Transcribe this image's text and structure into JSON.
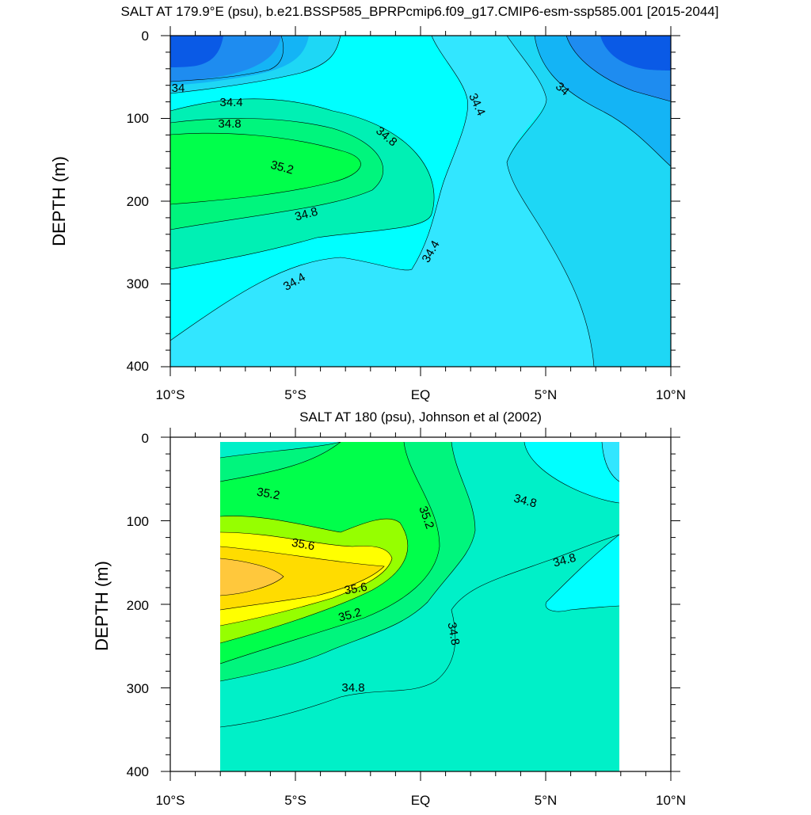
{
  "chart_data": [
    {
      "type": "contour",
      "title": "SALT AT 179.9°E (psu), b.e21.BSSP585_BPRPcmip6.f09_g17.CMIP6-esm-ssp585.001 [2015-2044]",
      "ylabel": "DEPTH (m)",
      "x_ticks": [
        "10°S",
        "5°S",
        "EQ",
        "5°N",
        "10°N"
      ],
      "y_ticks": [
        "0",
        "100",
        "200",
        "300",
        "400"
      ],
      "xlim": [
        -10,
        10
      ],
      "ylim": [
        400,
        0
      ],
      "colors": {
        "lt33.8": "#0a5ae6",
        "33.8-34.0": "#1e8cf0",
        "34.0-34.2": "#14b4f5",
        "34.2-34.4": "#1ed7f5",
        "34.4-34.6": "#32e6ff",
        "34.6-34.8": "#00ffff",
        "34.8-35.0": "#00f0b4",
        "35.0-35.2": "#00f57d",
        "35.2-35.4": "#00ff4b"
      },
      "contour_labels": [
        "34",
        "34.4",
        "34.8",
        "34.4",
        "34",
        "34.8",
        "35.2",
        "34.8",
        "34.4",
        "34.4"
      ]
    },
    {
      "type": "contour",
      "title": "SALT AT 180 (psu), Johnson et al (2002)",
      "ylabel": "DEPTH (m)",
      "x_ticks": [
        "10°S",
        "5°S",
        "EQ",
        "5°N",
        "10°N"
      ],
      "y_ticks": [
        "0",
        "100",
        "200",
        "300",
        "400"
      ],
      "xlim": [
        -10,
        10
      ],
      "ylim": [
        400,
        0
      ],
      "data_xrange": [
        -8,
        8
      ],
      "colors": {
        "34.4-34.6": "#32e6ff",
        "34.6-34.8": "#00ffff",
        "34.8-35.0": "#00f0c8",
        "35.0-35.2": "#00f57d",
        "35.2-35.4": "#00ff4b",
        "35.4-35.6": "#96ff00",
        "35.6-35.8": "#ffff00",
        "35.8-36.0": "#ffdc00",
        "gt36.0": "#ffc83c"
      },
      "contour_labels": [
        "35.2",
        "35.2",
        "34.8",
        "35.6",
        "34.8",
        "35.6",
        "35.2",
        "34.8",
        "34.8"
      ]
    }
  ]
}
